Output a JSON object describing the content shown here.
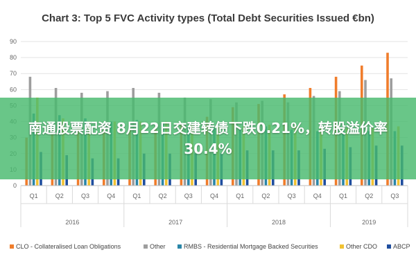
{
  "overlay": {
    "headline": "南通股票配资 8月22日交建转债下跌0.21%，转股溢价率30.4%"
  },
  "chart_data": {
    "type": "bar",
    "title": "Chart 3: Top 5 FVC Activity types (Total Debt Securities Issued €bn)",
    "xlabel": "",
    "ylabel": "",
    "ylim": [
      0,
      90
    ],
    "yticks": [
      0,
      10,
      20,
      30,
      40,
      50,
      60,
      70,
      80,
      90
    ],
    "grid": true,
    "legend_position": "bottom",
    "categories": [
      "Q1",
      "Q2",
      "Q3",
      "Q4",
      "Q1",
      "Q2",
      "Q3",
      "Q4",
      "Q1",
      "Q2",
      "Q3",
      "Q4",
      "Q1",
      "Q2",
      "Q3"
    ],
    "years": [
      {
        "label": "2016",
        "span": 4
      },
      {
        "label": "2017",
        "span": 4
      },
      {
        "label": "2018",
        "span": 4
      },
      {
        "label": "2019",
        "span": 3
      }
    ],
    "series": [
      {
        "name": "CLO - Collateralised Loan Obligations",
        "color": "#f07d2c",
        "values": [
          30,
          32,
          36,
          35,
          36,
          37,
          38,
          43,
          49,
          51,
          57,
          61,
          68,
          75,
          83
        ]
      },
      {
        "name": "Other",
        "color": "#9e9e9e",
        "values": [
          68,
          61,
          58,
          59,
          61,
          58,
          55,
          54,
          52,
          53,
          52,
          56,
          59,
          66,
          67
        ]
      },
      {
        "name": "RMBS - Residential Mortgage Backed Securities",
        "color": "#2a86a8",
        "values": [
          45,
          44,
          42,
          40,
          41,
          39,
          37,
          36,
          36,
          37,
          35,
          34,
          34,
          34,
          34
        ]
      },
      {
        "name": "Other CDO",
        "color": "#f1c232",
        "values": [
          55,
          42,
          40,
          40,
          40,
          40,
          38,
          37,
          37,
          38,
          38,
          36,
          36,
          36,
          37
        ]
      },
      {
        "name": "ABCP",
        "color": "#1f4e9e",
        "values": [
          21,
          19,
          17,
          17,
          20,
          20,
          20,
          20,
          22,
          22,
          22,
          23,
          24,
          25,
          25
        ]
      }
    ]
  }
}
